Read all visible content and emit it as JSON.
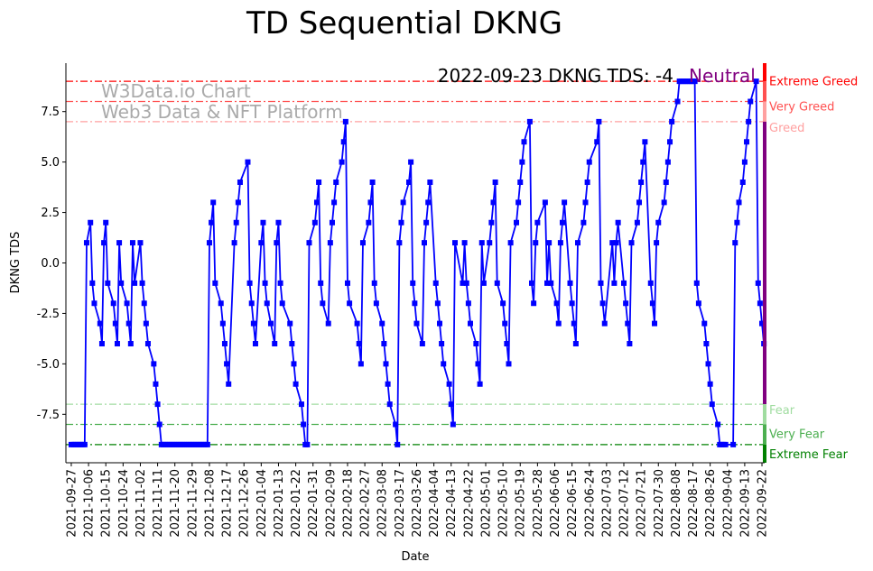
{
  "chart_data": {
    "type": "line",
    "title": "TD Sequential DKNG",
    "xlabel": "Date",
    "ylabel": "DKNG TDS",
    "start_date": "2021-09-27",
    "ylim": [
      -9.9,
      9.9
    ],
    "xlim_days": [
      -2.8,
      361.4
    ],
    "yticks": [
      "-7.5",
      "-5.0",
      "-2.5",
      "0.0",
      "2.5",
      "5.0",
      "7.5"
    ],
    "ytick_values": [
      -7.5,
      -5,
      -2.5,
      0,
      2.5,
      5,
      7.5
    ],
    "xtick_days": [
      0,
      9,
      18,
      27,
      36,
      45,
      54,
      63,
      72,
      81,
      90,
      99,
      108,
      117,
      126,
      135,
      144,
      153,
      162,
      171,
      180,
      189,
      198,
      207,
      216,
      225,
      234,
      243,
      252,
      261,
      270,
      279,
      288,
      297,
      306,
      315,
      324,
      333,
      342,
      351,
      360
    ],
    "xticks": [
      "2021-09-27",
      "2021-10-06",
      "2021-10-15",
      "2021-10-24",
      "2021-11-02",
      "2021-11-11",
      "2021-11-20",
      "2021-11-29",
      "2021-12-08",
      "2021-12-17",
      "2021-12-26",
      "2022-01-04",
      "2022-01-13",
      "2022-01-22",
      "2022-01-31",
      "2022-02-09",
      "2022-02-18",
      "2022-02-27",
      "2022-03-08",
      "2022-03-17",
      "2022-03-26",
      "2022-04-04",
      "2022-04-13",
      "2022-04-22",
      "2022-05-01",
      "2022-05-10",
      "2022-05-19",
      "2022-05-28",
      "2022-06-06",
      "2022-06-15",
      "2022-06-24",
      "2022-07-03",
      "2022-07-12",
      "2022-07-21",
      "2022-07-30",
      "2022-08-08",
      "2022-08-17",
      "2022-08-26",
      "2022-09-04",
      "2022-09-13",
      "2022-09-22"
    ],
    "series": [
      {
        "name": "DKNG TDS",
        "color": "#0000ff",
        "points_day_value": [
          [
            0,
            -9
          ],
          [
            1,
            -9
          ],
          [
            2,
            -9
          ],
          [
            3,
            -9
          ],
          [
            4,
            -9
          ],
          [
            5,
            -9
          ],
          [
            6,
            -9
          ],
          [
            7,
            -9
          ],
          [
            8,
            1
          ],
          [
            10,
            2
          ],
          [
            11,
            -1
          ],
          [
            12,
            -2
          ],
          [
            15,
            -3
          ],
          [
            16,
            -4
          ],
          [
            17,
            1
          ],
          [
            18,
            2
          ],
          [
            19,
            -1
          ],
          [
            22,
            -2
          ],
          [
            23,
            -3
          ],
          [
            24,
            -4
          ],
          [
            25,
            1
          ],
          [
            26,
            -1
          ],
          [
            29,
            -2
          ],
          [
            30,
            -3
          ],
          [
            31,
            -4
          ],
          [
            32,
            1
          ],
          [
            33,
            -1
          ],
          [
            36,
            1
          ],
          [
            37,
            -1
          ],
          [
            38,
            -2
          ],
          [
            39,
            -3
          ],
          [
            40,
            -4
          ],
          [
            43,
            -5
          ],
          [
            44,
            -6
          ],
          [
            45,
            -7
          ],
          [
            46,
            -8
          ],
          [
            47,
            -9
          ],
          [
            48,
            -9
          ],
          [
            49,
            -9
          ],
          [
            50,
            -9
          ],
          [
            51,
            -9
          ],
          [
            52,
            -9
          ],
          [
            53,
            -9
          ],
          [
            54,
            -9
          ],
          [
            55,
            -9
          ],
          [
            56,
            -9
          ],
          [
            57,
            -9
          ],
          [
            58,
            -9
          ],
          [
            59,
            -9
          ],
          [
            60,
            -9
          ],
          [
            61,
            -9
          ],
          [
            62,
            -9
          ],
          [
            63,
            -9
          ],
          [
            64,
            -9
          ],
          [
            65,
            -9
          ],
          [
            66,
            -9
          ],
          [
            67,
            -9
          ],
          [
            68,
            -9
          ],
          [
            69,
            -9
          ],
          [
            70,
            -9
          ],
          [
            71,
            -9
          ],
          [
            72,
            1
          ],
          [
            73,
            2
          ],
          [
            74,
            3
          ],
          [
            75,
            -1
          ],
          [
            78,
            -2
          ],
          [
            79,
            -3
          ],
          [
            80,
            -4
          ],
          [
            81,
            -5
          ],
          [
            82,
            -6
          ],
          [
            85,
            1
          ],
          [
            86,
            2
          ],
          [
            87,
            3
          ],
          [
            88,
            4
          ],
          [
            92,
            5
          ],
          [
            93,
            -1
          ],
          [
            94,
            -2
          ],
          [
            95,
            -3
          ],
          [
            96,
            -4
          ],
          [
            99,
            1
          ],
          [
            100,
            2
          ],
          [
            101,
            -1
          ],
          [
            102,
            -2
          ],
          [
            104,
            -3
          ],
          [
            106,
            -4
          ],
          [
            107,
            1
          ],
          [
            108,
            2
          ],
          [
            109,
            -1
          ],
          [
            110,
            -2
          ],
          [
            114,
            -3
          ],
          [
            115,
            -4
          ],
          [
            116,
            -5
          ],
          [
            117,
            -6
          ],
          [
            120,
            -7
          ],
          [
            121,
            -8
          ],
          [
            122,
            -9
          ],
          [
            123,
            -9
          ],
          [
            124,
            1
          ],
          [
            127,
            2
          ],
          [
            128,
            3
          ],
          [
            129,
            4
          ],
          [
            130,
            -1
          ],
          [
            131,
            -2
          ],
          [
            134,
            -3
          ],
          [
            135,
            1
          ],
          [
            136,
            2
          ],
          [
            137,
            3
          ],
          [
            138,
            4
          ],
          [
            141,
            5
          ],
          [
            142,
            6
          ],
          [
            143,
            7
          ],
          [
            144,
            -1
          ],
          [
            145,
            -2
          ],
          [
            149,
            -3
          ],
          [
            150,
            -4
          ],
          [
            151,
            -5
          ],
          [
            152,
            1
          ],
          [
            155,
            2
          ],
          [
            156,
            3
          ],
          [
            157,
            4
          ],
          [
            158,
            -1
          ],
          [
            159,
            -2
          ],
          [
            162,
            -3
          ],
          [
            163,
            -4
          ],
          [
            164,
            -5
          ],
          [
            165,
            -6
          ],
          [
            166,
            -7
          ],
          [
            169,
            -8
          ],
          [
            170,
            -9
          ],
          [
            171,
            1
          ],
          [
            172,
            2
          ],
          [
            173,
            3
          ],
          [
            176,
            4
          ],
          [
            177,
            5
          ],
          [
            178,
            -1
          ],
          [
            179,
            -2
          ],
          [
            180,
            -3
          ],
          [
            183,
            -4
          ],
          [
            184,
            1
          ],
          [
            185,
            2
          ],
          [
            186,
            3
          ],
          [
            187,
            4
          ],
          [
            190,
            -1
          ],
          [
            191,
            -2
          ],
          [
            192,
            -3
          ],
          [
            193,
            -4
          ],
          [
            194,
            -5
          ],
          [
            197,
            -6
          ],
          [
            198,
            -7
          ],
          [
            199,
            -8
          ],
          [
            200,
            1
          ],
          [
            204,
            -1
          ],
          [
            205,
            1
          ],
          [
            206,
            -1
          ],
          [
            207,
            -2
          ],
          [
            208,
            -3
          ],
          [
            211,
            -4
          ],
          [
            212,
            -5
          ],
          [
            213,
            -6
          ],
          [
            214,
            1
          ],
          [
            215,
            -1
          ],
          [
            218,
            1
          ],
          [
            219,
            2
          ],
          [
            220,
            3
          ],
          [
            221,
            4
          ],
          [
            222,
            -1
          ],
          [
            225,
            -2
          ],
          [
            226,
            -3
          ],
          [
            227,
            -4
          ],
          [
            228,
            -5
          ],
          [
            229,
            1
          ],
          [
            232,
            2
          ],
          [
            233,
            3
          ],
          [
            234,
            4
          ],
          [
            235,
            5
          ],
          [
            236,
            6
          ],
          [
            239,
            7
          ],
          [
            240,
            -1
          ],
          [
            241,
            -2
          ],
          [
            242,
            1
          ],
          [
            243,
            2
          ],
          [
            247,
            3
          ],
          [
            248,
            -1
          ],
          [
            249,
            1
          ],
          [
            250,
            -1
          ],
          [
            253,
            -2
          ],
          [
            254,
            -3
          ],
          [
            255,
            1
          ],
          [
            256,
            2
          ],
          [
            257,
            3
          ],
          [
            260,
            -1
          ],
          [
            261,
            -2
          ],
          [
            262,
            -3
          ],
          [
            263,
            -4
          ],
          [
            264,
            1
          ],
          [
            267,
            2
          ],
          [
            268,
            3
          ],
          [
            269,
            4
          ],
          [
            270,
            5
          ],
          [
            274,
            6
          ],
          [
            275,
            7
          ],
          [
            276,
            -1
          ],
          [
            277,
            -2
          ],
          [
            278,
            -3
          ],
          [
            282,
            1
          ],
          [
            283,
            -1
          ],
          [
            284,
            1
          ],
          [
            285,
            2
          ],
          [
            288,
            -1
          ],
          [
            289,
            -2
          ],
          [
            290,
            -3
          ],
          [
            291,
            -4
          ],
          [
            292,
            1
          ],
          [
            295,
            2
          ],
          [
            296,
            3
          ],
          [
            297,
            4
          ],
          [
            298,
            5
          ],
          [
            299,
            6
          ],
          [
            302,
            -1
          ],
          [
            303,
            -2
          ],
          [
            304,
            -3
          ],
          [
            305,
            1
          ],
          [
            306,
            2
          ],
          [
            309,
            3
          ],
          [
            310,
            4
          ],
          [
            311,
            5
          ],
          [
            312,
            6
          ],
          [
            313,
            7
          ],
          [
            316,
            8
          ],
          [
            317,
            9
          ],
          [
            318,
            9
          ],
          [
            319,
            9
          ],
          [
            320,
            9
          ],
          [
            321,
            9
          ],
          [
            322,
            9
          ],
          [
            323,
            9
          ],
          [
            324,
            9
          ],
          [
            325,
            9
          ],
          [
            326,
            -1
          ],
          [
            327,
            -2
          ],
          [
            330,
            -3
          ],
          [
            331,
            -4
          ],
          [
            332,
            -5
          ],
          [
            333,
            -6
          ],
          [
            334,
            -7
          ],
          [
            337,
            -8
          ],
          [
            338,
            -9
          ],
          [
            339,
            -9
          ],
          [
            340,
            -9
          ],
          [
            341,
            -9
          ],
          [
            345,
            -9
          ],
          [
            346,
            1
          ],
          [
            347,
            2
          ],
          [
            348,
            3
          ],
          [
            350,
            4
          ],
          [
            351,
            5
          ],
          [
            352,
            6
          ],
          [
            353,
            7
          ],
          [
            354,
            8
          ],
          [
            357,
            9
          ],
          [
            358,
            -1
          ],
          [
            359,
            -2
          ],
          [
            360,
            -3
          ],
          [
            361,
            -4
          ]
        ]
      }
    ],
    "thresholds": [
      {
        "value": 9,
        "label": "Extreme Greed",
        "color": "#ff0000"
      },
      {
        "value": 8,
        "label": "Very Greed",
        "color": "#ff5050"
      },
      {
        "value": 7,
        "label": "Greed",
        "color": "#ffa0a0"
      },
      {
        "value": -7,
        "label": "Fear",
        "color": "#a0dca0"
      },
      {
        "value": -8,
        "label": "Very Fear",
        "color": "#4caf50"
      },
      {
        "value": -9,
        "label": "Extreme Fear",
        "color": "#008000"
      }
    ],
    "zone_bar": [
      {
        "from": 9,
        "to": 9.9,
        "color": "#ff0000"
      },
      {
        "from": 8,
        "to": 9,
        "color": "#ff5050"
      },
      {
        "from": 7,
        "to": 8,
        "color": "#ffa0a0"
      },
      {
        "from": -7,
        "to": 7,
        "color": "#800080"
      },
      {
        "from": -8,
        "to": -7,
        "color": "#a0dca0"
      },
      {
        "from": -9,
        "to": -8,
        "color": "#4caf50"
      },
      {
        "from": -9.9,
        "to": -9,
        "color": "#008000"
      }
    ],
    "annotation": {
      "text": "2022-09-23 DKNG TDS: -4",
      "status": "Neutral",
      "status_color": "#800080"
    },
    "watermark": {
      "line1": "W3Data.io Chart",
      "line2": "Web3 Data & NFT Platform"
    }
  }
}
